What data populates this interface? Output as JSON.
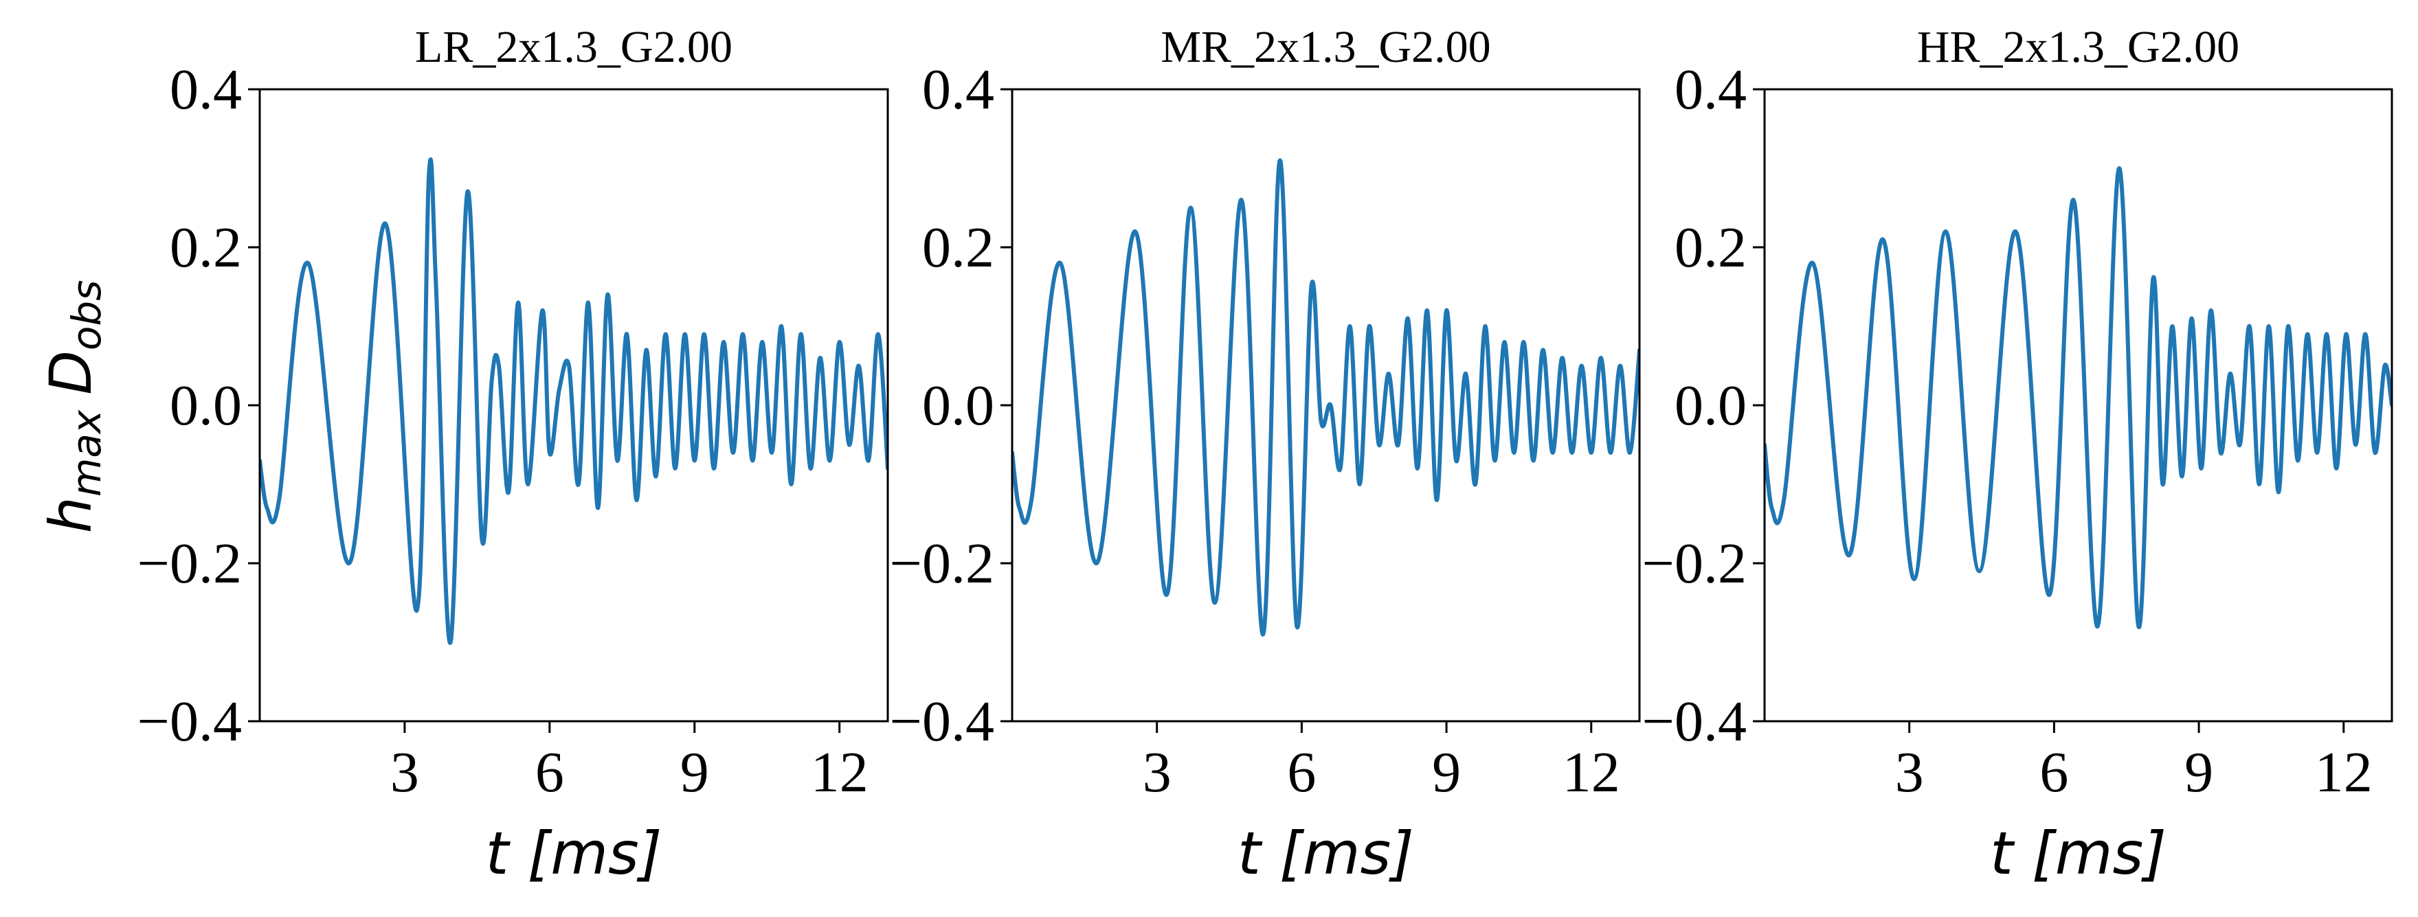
{
  "figure": {
    "ylabel_main": "h",
    "ylabel_sub1": "max",
    "ylabel_mid": "D",
    "ylabel_sub2": "obs",
    "xlabel": "t [ms]"
  },
  "chart_data": [
    {
      "type": "line",
      "title": "LR_2x1.3_G2.00",
      "xlabel": "t [ms]",
      "ylabel": "h_max D_obs",
      "xlim": [
        0,
        13
      ],
      "ylim": [
        -0.4,
        0.4
      ],
      "xticks": [
        3,
        6,
        9,
        12
      ],
      "xtick_labels": [
        "3",
        "6",
        "9",
        "12"
      ],
      "yticks": [
        -0.4,
        -0.2,
        0.0,
        0.2,
        0.4
      ],
      "ytick_labels": [
        "−0.4",
        "−0.2",
        "0.0",
        "0.2",
        "0.4"
      ],
      "grid": false,
      "line_color": "#1f77b4",
      "series": [
        {
          "x": [
            0,
            0.15,
            0.4,
            1.0,
            1.85,
            2.6,
            3.25,
            3.5,
            3.65,
            3.95,
            4.3,
            4.6,
            4.8,
            4.95,
            5.15,
            5.35,
            5.55,
            5.85,
            6.0,
            6.2,
            6.4,
            6.6,
            6.8,
            7.0,
            7.2,
            7.4,
            7.6,
            7.8,
            8.0,
            8.2,
            8.4,
            8.6,
            8.8,
            9.0,
            9.2,
            9.4,
            9.6,
            9.8,
            10.0,
            10.2,
            10.4,
            10.6,
            10.8,
            11.0,
            11.2,
            11.4,
            11.6,
            11.8,
            12.0,
            12.2,
            12.4,
            12.6,
            12.8,
            13.0
          ],
          "y": [
            -0.07,
            -0.13,
            -0.12,
            0.18,
            -0.2,
            0.23,
            -0.26,
            0.29,
            0.15,
            -0.3,
            0.27,
            -0.17,
            0.03,
            0.05,
            -0.11,
            0.13,
            -0.1,
            0.12,
            -0.06,
            0.02,
            0.05,
            -0.1,
            0.13,
            -0.13,
            0.14,
            -0.07,
            0.09,
            -0.12,
            0.07,
            -0.09,
            0.09,
            -0.08,
            0.09,
            -0.07,
            0.09,
            -0.08,
            0.08,
            -0.06,
            0.09,
            -0.07,
            0.08,
            -0.06,
            0.1,
            -0.1,
            0.09,
            -0.08,
            0.06,
            -0.07,
            0.08,
            -0.05,
            0.05,
            -0.07,
            0.09,
            -0.08
          ]
        }
      ]
    },
    {
      "type": "line",
      "title": "MR_2x1.3_G2.00",
      "xlabel": "t [ms]",
      "xlim": [
        0,
        13
      ],
      "ylim": [
        -0.4,
        0.4
      ],
      "xticks": [
        3,
        6,
        9,
        12
      ],
      "xtick_labels": [
        "3",
        "6",
        "9",
        "12"
      ],
      "yticks": [
        -0.4,
        -0.2,
        0.0,
        0.2,
        0.4
      ],
      "ytick_labels": [
        "−0.4",
        "−0.2",
        "0.0",
        "0.2",
        "0.4"
      ],
      "grid": false,
      "line_color": "#1f77b4",
      "series": [
        {
          "x": [
            0,
            0.15,
            0.4,
            1.0,
            1.75,
            2.55,
            3.2,
            3.7,
            4.2,
            4.75,
            5.2,
            5.55,
            5.9,
            6.2,
            6.4,
            6.6,
            6.8,
            7.0,
            7.2,
            7.4,
            7.6,
            7.8,
            8.0,
            8.2,
            8.4,
            8.6,
            8.8,
            9.0,
            9.2,
            9.4,
            9.6,
            9.8,
            10.0,
            10.2,
            10.4,
            10.6,
            10.8,
            11.0,
            11.2,
            11.4,
            11.6,
            11.8,
            12.0,
            12.2,
            12.4,
            12.6,
            12.8,
            13.0
          ],
          "y": [
            -0.06,
            -0.13,
            -0.12,
            0.18,
            -0.2,
            0.22,
            -0.24,
            0.25,
            -0.25,
            0.26,
            -0.29,
            0.31,
            -0.28,
            0.15,
            -0.02,
            0.0,
            -0.08,
            0.1,
            -0.1,
            0.1,
            -0.05,
            0.04,
            -0.05,
            0.11,
            -0.08,
            0.12,
            -0.12,
            0.12,
            -0.07,
            0.04,
            -0.1,
            0.1,
            -0.07,
            0.08,
            -0.06,
            0.08,
            -0.07,
            0.07,
            -0.06,
            0.06,
            -0.06,
            0.05,
            -0.06,
            0.06,
            -0.06,
            0.05,
            -0.06,
            0.07
          ]
        }
      ]
    },
    {
      "type": "line",
      "title": "HR_2x1.3_G2.00",
      "xlabel": "t [ms]",
      "xlim": [
        0,
        13
      ],
      "ylim": [
        -0.4,
        0.4
      ],
      "xticks": [
        3,
        6,
        9,
        12
      ],
      "xtick_labels": [
        "3",
        "6",
        "9",
        "12"
      ],
      "yticks": [
        -0.4,
        -0.2,
        0.0,
        0.2,
        0.4
      ],
      "ytick_labels": [
        "−0.4",
        "−0.2",
        "0.0",
        "0.2",
        "0.4"
      ],
      "grid": false,
      "line_color": "#1f77b4",
      "series": [
        {
          "x": [
            0,
            0.15,
            0.4,
            1.0,
            1.75,
            2.45,
            3.1,
            3.75,
            4.45,
            5.2,
            5.9,
            6.4,
            6.9,
            7.35,
            7.75,
            8.05,
            8.25,
            8.45,
            8.65,
            8.85,
            9.05,
            9.25,
            9.45,
            9.65,
            9.85,
            10.05,
            10.25,
            10.45,
            10.65,
            10.85,
            11.05,
            11.25,
            11.45,
            11.65,
            11.85,
            12.05,
            12.25,
            12.45,
            12.65,
            12.85,
            13.0
          ],
          "y": [
            -0.05,
            -0.13,
            -0.12,
            0.18,
            -0.19,
            0.21,
            -0.22,
            0.22,
            -0.21,
            0.22,
            -0.24,
            0.26,
            -0.28,
            0.3,
            -0.28,
            0.16,
            -0.1,
            0.1,
            -0.09,
            0.11,
            -0.08,
            0.12,
            -0.06,
            0.04,
            -0.05,
            0.1,
            -0.1,
            0.1,
            -0.11,
            0.1,
            -0.07,
            0.09,
            -0.06,
            0.09,
            -0.08,
            0.09,
            -0.05,
            0.09,
            -0.06,
            0.05,
            0.0
          ]
        }
      ]
    }
  ]
}
